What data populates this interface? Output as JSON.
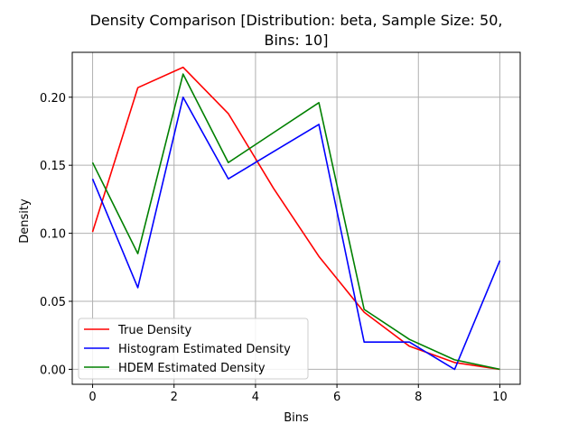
{
  "chart_data": {
    "type": "line",
    "title_line1": "Density Comparison [Distribution: beta, Sample Size: 50,",
    "title_line2": "Bins: 10]",
    "xlabel": "Bins",
    "ylabel": "Density",
    "xlim": [
      -0.5,
      10.5
    ],
    "ylim": [
      -0.011,
      0.233
    ],
    "xticks": [
      0,
      2,
      4,
      6,
      8,
      10
    ],
    "yticks": [
      0.0,
      0.05,
      0.1,
      0.15,
      0.2
    ],
    "ytick_labels": [
      "0.00",
      "0.05",
      "0.10",
      "0.15",
      "0.20"
    ],
    "grid": true,
    "legend_position": "lower-left",
    "x": [
      0,
      1.111,
      2.222,
      3.333,
      4.444,
      5.556,
      6.667,
      7.778,
      8.889,
      10
    ],
    "series": [
      {
        "name": "True Density",
        "color": "#ff0000",
        "values": [
          0.101,
          0.207,
          0.222,
          0.188,
          0.133,
          0.083,
          0.042,
          0.017,
          0.005,
          0.0
        ]
      },
      {
        "name": "Histogram Estimated Density",
        "color": "#0000ff",
        "values": [
          0.14,
          0.06,
          0.2,
          0.14,
          0.16,
          0.18,
          0.02,
          0.02,
          0.0,
          0.08
        ]
      },
      {
        "name": "HDEM Estimated Density",
        "color": "#008000",
        "values": [
          0.152,
          0.085,
          0.217,
          0.152,
          0.174,
          0.196,
          0.044,
          0.022,
          0.007,
          0.0
        ]
      }
    ]
  }
}
